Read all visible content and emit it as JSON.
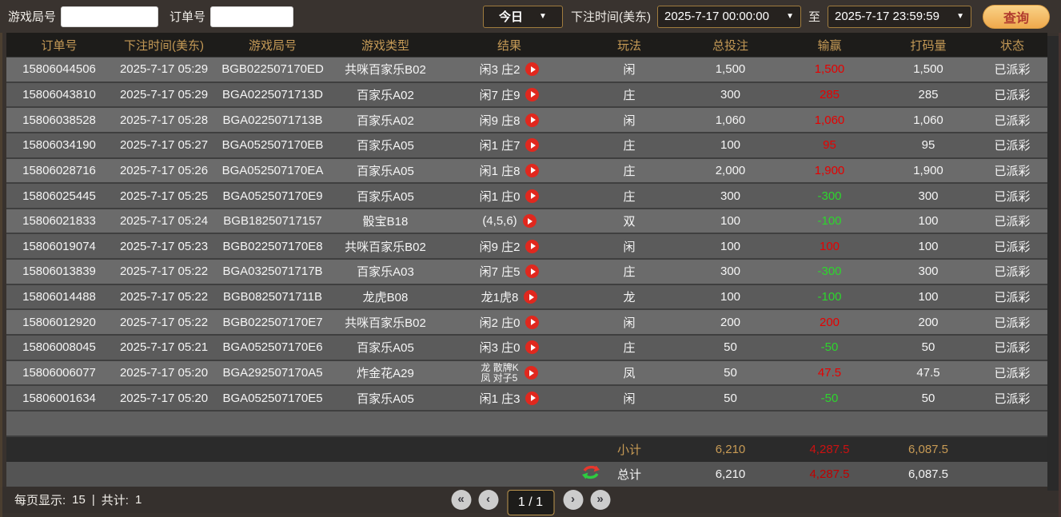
{
  "toolbar": {
    "game_round_label": "游戏局号",
    "order_label": "订单号",
    "game_round_value": "",
    "order_value": "",
    "range_select": "今日",
    "arrow": "▼",
    "bet_time_label": "下注时间(美东)",
    "start_time": "2025-7-17 00:00:00",
    "to_label": "至",
    "end_time": "2025-7-17 23:59:59",
    "search_label": "查询"
  },
  "table": {
    "headers": [
      "订单号",
      "下注时间(美东)",
      "游戏局号",
      "游戏类型",
      "结果",
      "玩法",
      "总投注",
      "输赢",
      "打码量",
      "状态"
    ],
    "rows": [
      {
        "order": "15806044506",
        "time": "2025-7-17 05:29",
        "round": "BGB022507170ED",
        "game": "共咪百家乐B02",
        "result": "闲3 庄2",
        "play": "闲",
        "bet": "1,500",
        "winloss": "1,500",
        "wl": "win",
        "turnover": "1,500",
        "status": "已派彩"
      },
      {
        "order": "15806043810",
        "time": "2025-7-17 05:29",
        "round": "BGA0225071713D",
        "game": "百家乐A02",
        "result": "闲7 庄9",
        "play": "庄",
        "bet": "300",
        "winloss": "285",
        "wl": "win",
        "turnover": "285",
        "status": "已派彩"
      },
      {
        "order": "15806038528",
        "time": "2025-7-17 05:28",
        "round": "BGA0225071713B",
        "game": "百家乐A02",
        "result": "闲9 庄8",
        "play": "闲",
        "bet": "1,060",
        "winloss": "1,060",
        "wl": "win",
        "turnover": "1,060",
        "status": "已派彩"
      },
      {
        "order": "15806034190",
        "time": "2025-7-17 05:27",
        "round": "BGA052507170EB",
        "game": "百家乐A05",
        "result": "闲1 庄7",
        "play": "庄",
        "bet": "100",
        "winloss": "95",
        "wl": "win",
        "turnover": "95",
        "status": "已派彩"
      },
      {
        "order": "15806028716",
        "time": "2025-7-17 05:26",
        "round": "BGA052507170EA",
        "game": "百家乐A05",
        "result": "闲1 庄8",
        "play": "庄",
        "bet": "2,000",
        "winloss": "1,900",
        "wl": "win",
        "turnover": "1,900",
        "status": "已派彩"
      },
      {
        "order": "15806025445",
        "time": "2025-7-17 05:25",
        "round": "BGA052507170E9",
        "game": "百家乐A05",
        "result": "闲1 庄0",
        "play": "庄",
        "bet": "300",
        "winloss": "-300",
        "wl": "loss",
        "turnover": "300",
        "status": "已派彩"
      },
      {
        "order": "15806021833",
        "time": "2025-7-17 05:24",
        "round": "BGB18250717157",
        "game": "骰宝B18",
        "result": "(4,5,6)",
        "play": "双",
        "bet": "100",
        "winloss": "-100",
        "wl": "loss",
        "turnover": "100",
        "status": "已派彩"
      },
      {
        "order": "15806019074",
        "time": "2025-7-17 05:23",
        "round": "BGB022507170E8",
        "game": "共咪百家乐B02",
        "result": "闲9 庄2",
        "play": "闲",
        "bet": "100",
        "winloss": "100",
        "wl": "win",
        "turnover": "100",
        "status": "已派彩"
      },
      {
        "order": "15806013839",
        "time": "2025-7-17 05:22",
        "round": "BGA0325071717B",
        "game": "百家乐A03",
        "result": "闲7 庄5",
        "play": "庄",
        "bet": "300",
        "winloss": "-300",
        "wl": "loss",
        "turnover": "300",
        "status": "已派彩"
      },
      {
        "order": "15806014488",
        "time": "2025-7-17 05:22",
        "round": "BGB0825071711B",
        "game": "龙虎B08",
        "result": "龙1虎8",
        "play": "龙",
        "bet": "100",
        "winloss": "-100",
        "wl": "loss",
        "turnover": "100",
        "status": "已派彩"
      },
      {
        "order": "15806012920",
        "time": "2025-7-17 05:22",
        "round": "BGB022507170E7",
        "game": "共咪百家乐B02",
        "result": "闲2 庄0",
        "play": "闲",
        "bet": "200",
        "winloss": "200",
        "wl": "win",
        "turnover": "200",
        "status": "已派彩"
      },
      {
        "order": "15806008045",
        "time": "2025-7-17 05:21",
        "round": "BGA052507170E6",
        "game": "百家乐A05",
        "result": "闲3 庄0",
        "play": "庄",
        "bet": "50",
        "winloss": "-50",
        "wl": "loss",
        "turnover": "50",
        "status": "已派彩"
      },
      {
        "order": "15806006077",
        "time": "2025-7-17 05:20",
        "round": "BGA292507170A5",
        "game": "炸金花A29",
        "result": "龙 散牌K",
        "result2": "凤 对子5",
        "play": "凤",
        "bet": "50",
        "winloss": "47.5",
        "wl": "win",
        "turnover": "47.5",
        "status": "已派彩"
      },
      {
        "order": "15806001634",
        "time": "2025-7-17 05:20",
        "round": "BGA052507170E5",
        "game": "百家乐A05",
        "result": "闲1 庄3",
        "play": "闲",
        "bet": "50",
        "winloss": "-50",
        "wl": "loss",
        "turnover": "50",
        "status": "已派彩"
      }
    ],
    "subtotal": {
      "label": "小计",
      "bet": "6,210",
      "winloss": "4,287.5",
      "turnover": "6,087.5"
    },
    "total": {
      "label": "总计",
      "bet": "6,210",
      "winloss": "4,287.5",
      "turnover": "6,087.5"
    }
  },
  "footer": {
    "per_page_label": "每页显示:",
    "per_page_value": "15",
    "separator": "|",
    "total_label": "共计:",
    "total_value": "1",
    "first": "«",
    "prev": "‹",
    "page_indicator": "1 / 1",
    "next": "›",
    "last": "»"
  },
  "colors": {
    "accent_gold": "#c59a56",
    "win_red": "#e60000",
    "loss_green": "#2dd62d",
    "row_light": "#6b6b6b",
    "row_dark": "#5b5b5b",
    "header_bg": "#1d1c1a",
    "button_gold": "#f0b35e"
  }
}
